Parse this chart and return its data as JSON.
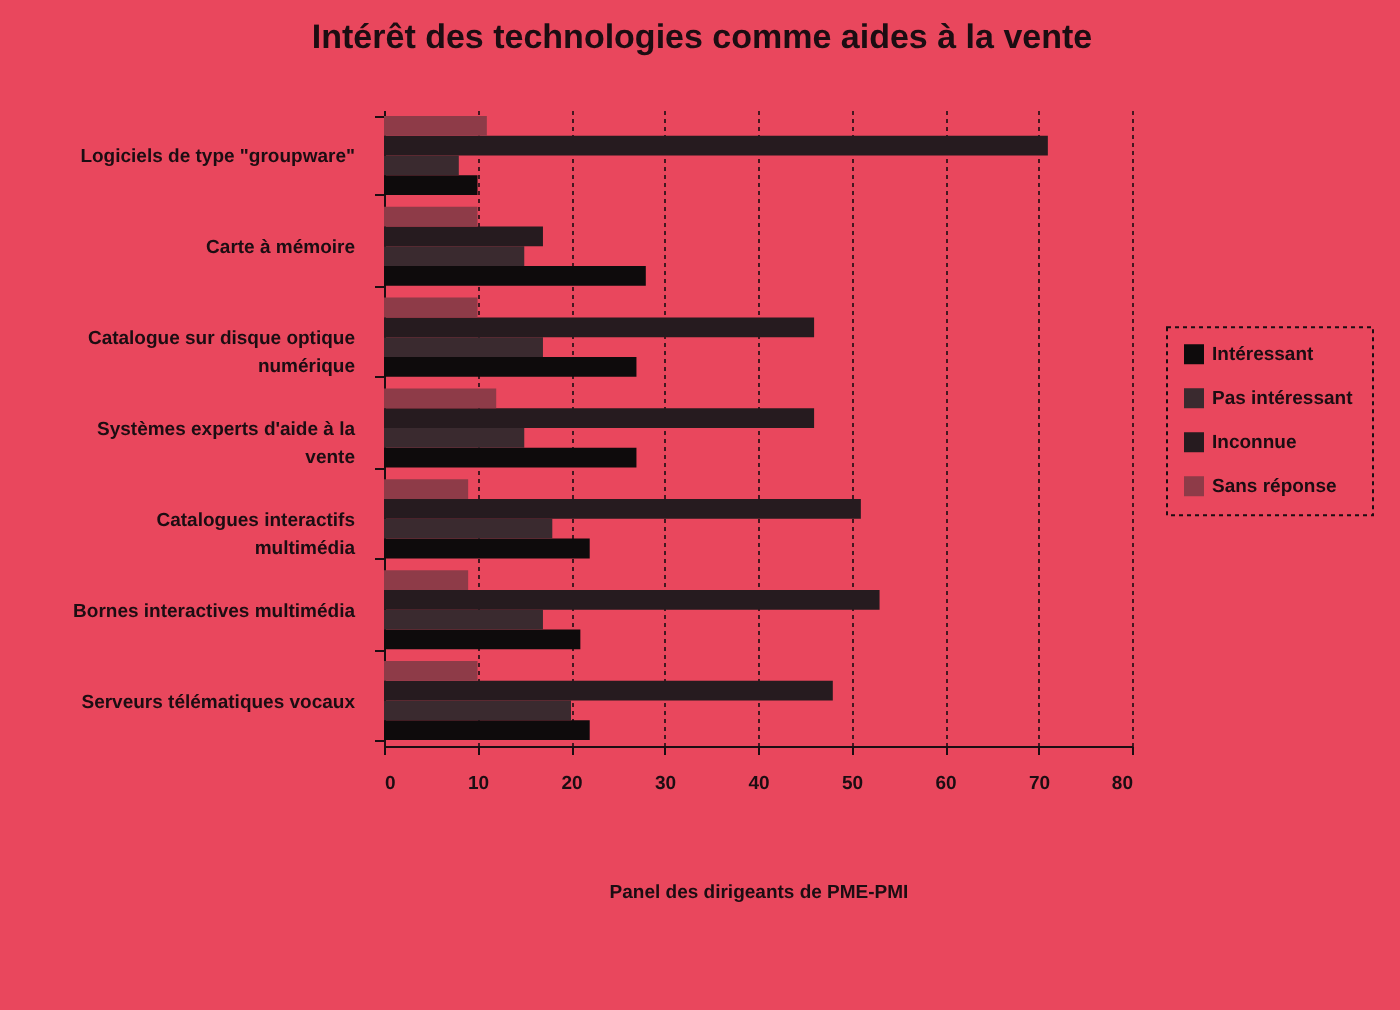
{
  "chart_data": {
    "type": "bar",
    "orientation": "horizontal",
    "title": "Intérêt des technologies comme aides à la vente",
    "xlabel": "Panel des dirigeants de PME-PMI",
    "categories": [
      "Logiciels de type \"groupware\"",
      "Carte à mémoire",
      "Catalogue sur disque optique numérique",
      "Systèmes experts d'aide à la vente",
      "Catalogues interactifs multimédia",
      "Bornes interactives multimédia",
      "Serveurs télématiques vocaux"
    ],
    "series": [
      {
        "name": "Intéressant",
        "color": "#0e0b0c",
        "values": [
          10,
          28,
          27,
          27,
          22,
          21,
          22
        ]
      },
      {
        "name": "Pas intéressant",
        "color": "#3a2a2f",
        "values": [
          8,
          15,
          17,
          15,
          18,
          17,
          20
        ]
      },
      {
        "name": "Inconnue",
        "color": "#261b1f",
        "values": [
          71,
          17,
          46,
          46,
          51,
          53,
          48
        ]
      },
      {
        "name": "Sans réponse",
        "color": "#8e3b48",
        "values": [
          11,
          10,
          10,
          12,
          9,
          9,
          10
        ]
      }
    ],
    "xlim": [
      0,
      80
    ],
    "xticks": [
      0,
      10,
      20,
      30,
      40,
      50,
      60,
      70,
      80
    ],
    "grid": "x",
    "legend": "right"
  }
}
